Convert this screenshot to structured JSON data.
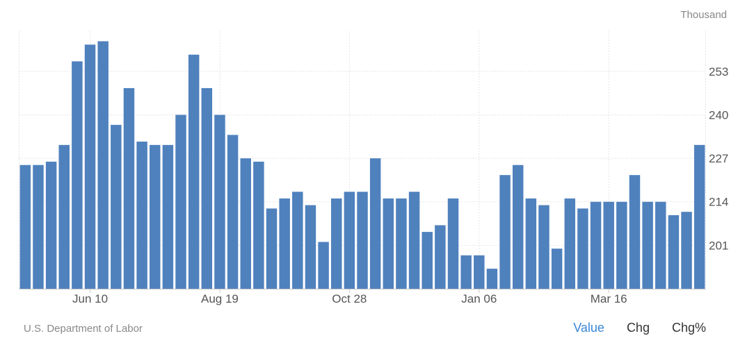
{
  "unit_label": "Thousand",
  "source": "U.S. Department of Labor",
  "tabs": [
    {
      "label": "Value",
      "active": true
    },
    {
      "label": "Chg",
      "active": false
    },
    {
      "label": "Chg%",
      "active": false
    }
  ],
  "colors": {
    "bar": "#4f81bd",
    "grid": "#e3e3e3",
    "axis": "#c8c8c8",
    "active_tab": "#3a87d6"
  },
  "chart_data": {
    "type": "bar",
    "ylim": [
      188,
      265
    ],
    "y_ticks": [
      201,
      214,
      227,
      240,
      253
    ],
    "x_tick_labels": [
      {
        "label": "Jun 10",
        "index": 5
      },
      {
        "label": "Aug 19",
        "index": 15
      },
      {
        "label": "Oct 28",
        "index": 25
      },
      {
        "label": "Jan 06",
        "index": 35
      },
      {
        "label": "Mar 16",
        "index": 45
      }
    ],
    "values": [
      225,
      225,
      226,
      231,
      256,
      261,
      262,
      237,
      248,
      232,
      231,
      231,
      240,
      258,
      248,
      240,
      234,
      227,
      226,
      212,
      215,
      217,
      213,
      202,
      215,
      217,
      217,
      227,
      215,
      215,
      217,
      205,
      207,
      215,
      198,
      198,
      194,
      222,
      225,
      215,
      213,
      200,
      215,
      212,
      214,
      214,
      214,
      222,
      214,
      214,
      210,
      211,
      231
    ],
    "grid": true,
    "legend": "none"
  }
}
